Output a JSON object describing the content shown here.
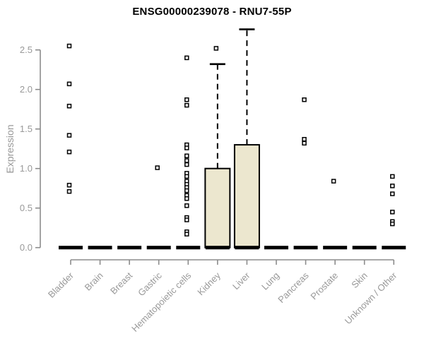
{
  "chart_data": {
    "type": "boxplot",
    "title": "ENSG00000239078 - RNU7-55P",
    "ylabel": "Expression",
    "xlabel": "",
    "ylim": [
      0,
      2.8
    ],
    "y_ticks": [
      "0.0",
      "0.5",
      "1.0",
      "1.5",
      "2.0",
      "2.5"
    ],
    "grid": false,
    "legend": "none",
    "categories": [
      "Bladder",
      "Brain",
      "Breast",
      "Gastric",
      "Hematopoietic cells",
      "Kidney",
      "Liver",
      "Lung",
      "Pancreas",
      "Prostate",
      "Skin",
      "Unknown / Other"
    ],
    "series": [
      {
        "name": "Bladder",
        "q1": 0,
        "median": 0,
        "q3": 0,
        "whisker_low": 0,
        "whisker_high": 0,
        "outliers": [
          2.55,
          2.07,
          1.79,
          1.42,
          1.21,
          0.79,
          0.71
        ]
      },
      {
        "name": "Brain",
        "q1": 0,
        "median": 0,
        "q3": 0,
        "whisker_low": 0,
        "whisker_high": 0,
        "outliers": []
      },
      {
        "name": "Breast",
        "q1": 0,
        "median": 0,
        "q3": 0,
        "whisker_low": 0,
        "whisker_high": 0,
        "outliers": []
      },
      {
        "name": "Gastric",
        "q1": 0,
        "median": 0,
        "q3": 0,
        "whisker_low": 0,
        "whisker_high": 0,
        "outliers": [
          1.01
        ]
      },
      {
        "name": "Hematopoietic cells",
        "q1": 0,
        "median": 0,
        "q3": 0,
        "whisker_low": 0,
        "whisker_high": 0,
        "outliers": [
          2.4,
          1.87,
          1.8,
          1.3,
          1.26,
          1.16,
          1.1,
          1.05,
          0.94,
          0.9,
          0.84,
          0.8,
          0.76,
          0.72,
          0.66,
          0.62,
          0.53,
          0.38,
          0.35,
          0.2,
          0.17
        ]
      },
      {
        "name": "Kidney",
        "q1": 0,
        "median": 0,
        "q3": 1.0,
        "whisker_low": 0,
        "whisker_high": 2.32,
        "outliers": [
          2.52
        ]
      },
      {
        "name": "Liver",
        "q1": 0,
        "median": 0,
        "q3": 1.3,
        "whisker_low": 0,
        "whisker_high": 2.76,
        "outliers": []
      },
      {
        "name": "Lung",
        "q1": 0,
        "median": 0,
        "q3": 0,
        "whisker_low": 0,
        "whisker_high": 0,
        "outliers": []
      },
      {
        "name": "Pancreas",
        "q1": 0,
        "median": 0,
        "q3": 0,
        "whisker_low": 0,
        "whisker_high": 0,
        "outliers": [
          1.87,
          1.37,
          1.32
        ]
      },
      {
        "name": "Prostate",
        "q1": 0,
        "median": 0,
        "q3": 0,
        "whisker_low": 0,
        "whisker_high": 0,
        "outliers": [
          0.84
        ]
      },
      {
        "name": "Skin",
        "q1": 0,
        "median": 0,
        "q3": 0,
        "whisker_low": 0,
        "whisker_high": 0,
        "outliers": []
      },
      {
        "name": "Unknown / Other",
        "q1": 0,
        "median": 0,
        "q3": 0,
        "whisker_low": 0,
        "whisker_high": 0,
        "outliers": [
          0.9,
          0.78,
          0.68,
          0.45,
          0.33,
          0.3
        ]
      }
    ],
    "colors": {
      "box_fill": "#ECE7CF",
      "box_border": "#000000",
      "median": "#000000",
      "whisker": "#000000",
      "outlier_fill": "#FFFFFF",
      "outlier_border": "#000000",
      "axis_line": "#8C8C8C",
      "tick_label": "#999999",
      "title": "#000000",
      "background": "#FFFFFF"
    }
  }
}
